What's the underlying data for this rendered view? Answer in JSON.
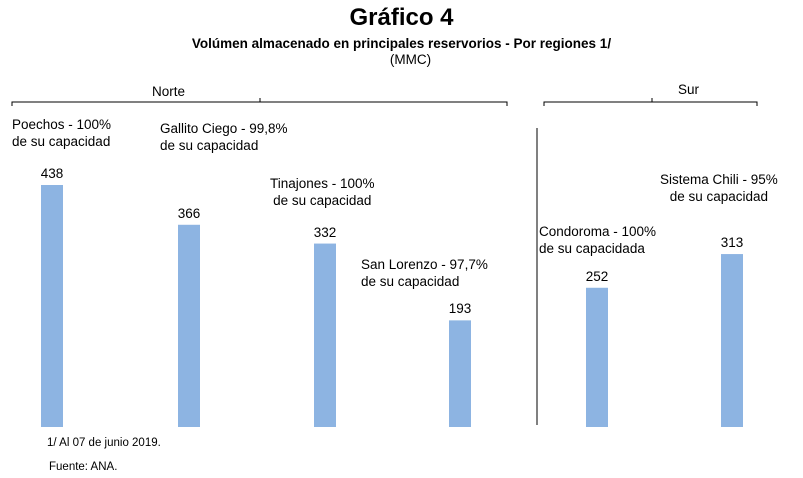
{
  "chart_data": {
    "type": "bar",
    "title": "Gráfico 4",
    "subtitle": "Volúmen almacenado en principales reservorios - Por regiones 1/",
    "unit_label": "(MMC)",
    "categories": [
      "Poechos - 100%\nde su capacidad",
      "Gallito Ciego - 99,8%\nde su capacidad",
      "Tinajones - 100%\nde su capacidad",
      "San Lorenzo - 97,7%\nde su capacidad",
      "Condoroma - 100%\nde su capacidada",
      "Sistema Chili - 95%\nde su capacidad"
    ],
    "values": [
      438,
      366,
      332,
      193,
      252,
      313
    ],
    "color": "#8db4e2",
    "groups": [
      "Norte",
      "Sur"
    ],
    "notes": [
      "1/ Al 07 de junio 2019.",
      "Fuente: ANA."
    ]
  }
}
